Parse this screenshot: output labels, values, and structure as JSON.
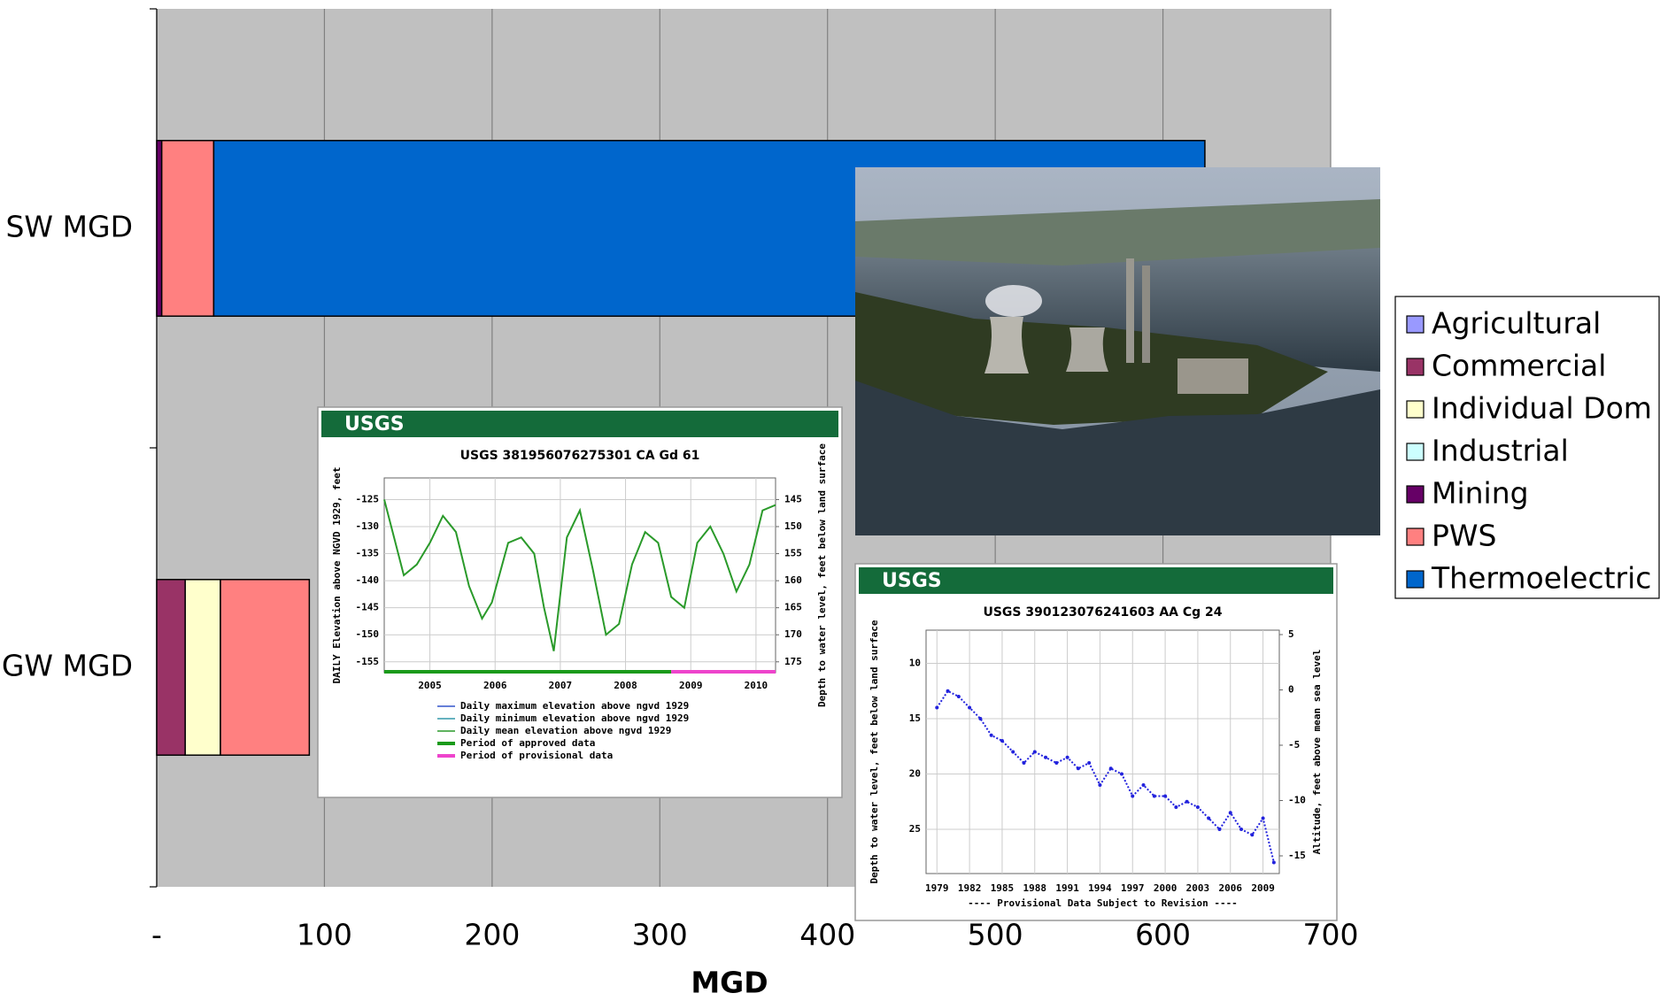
{
  "chart_data": [
    {
      "type": "hbar",
      "stacked": true,
      "categories": [
        "SW MGD",
        "GW MGD"
      ],
      "x_label": "MGD",
      "xlim": [
        0,
        700
      ],
      "xticks": [
        {
          "value": 0,
          "label": "-"
        },
        100,
        200,
        300,
        400,
        500,
        600,
        700
      ],
      "grid": true,
      "legend": "right",
      "series": [
        {
          "name": "Agricultural",
          "color": "#9999ff",
          "values": [
            0,
            0
          ]
        },
        {
          "name": "Commercial",
          "color": "#993366",
          "values": [
            0,
            17
          ]
        },
        {
          "name": "Individual Dom",
          "color": "#ffffcc",
          "values": [
            0,
            21
          ]
        },
        {
          "name": "Industrial",
          "color": "#ccffff",
          "values": [
            0,
            0
          ]
        },
        {
          "name": "Mining",
          "color": "#660066",
          "values": [
            3,
            0
          ]
        },
        {
          "name": "PWS",
          "color": "#ff8080",
          "values": [
            31,
            53
          ]
        },
        {
          "name": "Thermoelectric",
          "color": "#0066cc",
          "values": [
            591,
            0
          ]
        }
      ]
    },
    {
      "type": "line",
      "banner": "USGS",
      "title": "USGS 381956076275301 CA Gd 61",
      "y_label": "DAILY Elevation above NGVD 1929, feet",
      "y2_label": "Depth to water level, feet below land surface",
      "x": [
        2004.3,
        2004.45,
        2004.6,
        2004.8,
        2005.0,
        2005.2,
        2005.4,
        2005.6,
        2005.8,
        2005.95,
        2006.2,
        2006.4,
        2006.6,
        2006.75,
        2006.9,
        2007.1,
        2007.3,
        2007.5,
        2007.7,
        2007.9,
        2008.1,
        2008.3,
        2008.5,
        2008.7,
        2008.9,
        2009.1,
        2009.3,
        2009.5,
        2009.7,
        2009.9,
        2010.1,
        2010.3
      ],
      "series": [
        {
          "name": "Daily mean elevation above ngvd 1929",
          "color": "#2a9a2a",
          "values": [
            -125,
            -132,
            -139,
            -137,
            -133,
            -128,
            -131,
            -141,
            -147,
            -144,
            -133,
            -132,
            -135,
            -145,
            -153,
            -132,
            -127,
            -138,
            -150,
            -148,
            -137,
            -131,
            -133,
            -143,
            -145,
            -133,
            -130,
            -135,
            -142,
            -137,
            -127,
            -126
          ]
        }
      ],
      "xlim": [
        2004.3,
        2010.3
      ],
      "xticks": [
        2005,
        2006,
        2007,
        2008,
        2009,
        2010
      ],
      "ylim": [
        -157,
        -121
      ],
      "yticks": [
        -125,
        -130,
        -135,
        -140,
        -145,
        -150,
        -155
      ],
      "y2lim": [
        177,
        141
      ],
      "y2ticks": [
        145,
        150,
        155,
        160,
        165,
        170,
        175
      ],
      "grid": true,
      "legend": [
        {
          "label": "Daily maximum elevation above ngvd 1929",
          "color": "#3355cc"
        },
        {
          "label": "Daily minimum elevation above ngvd 1929",
          "color": "#3399aa"
        },
        {
          "label": "Daily mean elevation above ngvd 1929",
          "color": "#2a9a2a"
        }
      ],
      "periods": [
        {
          "label": "Period of approved data",
          "color": "#1a9a1a",
          "start": 2004.3,
          "end": 2008.7
        },
        {
          "label": "Period of provisional data",
          "color": "#ee44cc",
          "start": 2008.7,
          "end": 2010.3
        }
      ]
    },
    {
      "type": "line",
      "banner": "USGS",
      "title": "USGS 390123076241603 AA Cg 24",
      "y_label": "Depth to water level, feet below land surface",
      "y2_label": "Altitude, feet above mean sea level",
      "note": "---- Provisional Data Subject to Revision ----",
      "x": [
        1979,
        1980,
        1981,
        1982,
        1983,
        1984,
        1985,
        1986,
        1987,
        1988,
        1989,
        1990,
        1991,
        1992,
        1993,
        1994,
        1995,
        1996,
        1997,
        1998,
        1999,
        2000,
        2001,
        2002,
        2003,
        2004,
        2005,
        2006,
        2007,
        2008,
        2009,
        2010
      ],
      "series": [
        {
          "name": "Depth to water level",
          "color": "#2222dd",
          "values": [
            14,
            12.5,
            13,
            14,
            15,
            16.5,
            17,
            18,
            19,
            18,
            18.5,
            19,
            18.5,
            19.5,
            19,
            21,
            19.5,
            20,
            22,
            21,
            22,
            22,
            23,
            22.5,
            23,
            24,
            25,
            23.5,
            25,
            25.5,
            24,
            28
          ]
        }
      ],
      "xlim": [
        1978,
        2010.5
      ],
      "xticks": [
        1979,
        1982,
        1985,
        1988,
        1991,
        1994,
        1997,
        2000,
        2003,
        2006,
        2009
      ],
      "ylim": [
        29,
        7
      ],
      "yticks": [
        10,
        15,
        20,
        25
      ],
      "y2lim": [
        -16.6,
        5.4
      ],
      "y2ticks": [
        5,
        0,
        -5,
        -10,
        -15
      ],
      "grid": true
    }
  ]
}
